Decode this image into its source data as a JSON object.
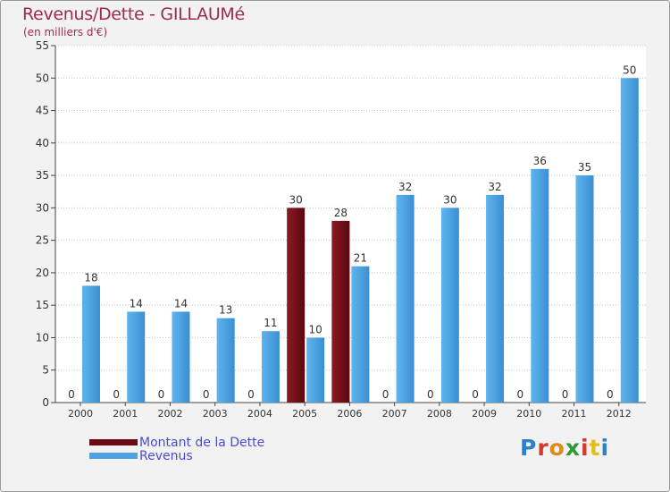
{
  "header": {
    "title": "Revenus/Dette - GILLAUMé",
    "subtitle": "(en milliers d'€)"
  },
  "colors": {
    "dette": "#6b0a12",
    "revenus": "#4ea3e0",
    "axis": "#444444",
    "grid": "#c8c8c8",
    "title": "#9c2a53",
    "legend_text": "#4a4ad8"
  },
  "legend": {
    "dette_label": "Montant de la Dette",
    "revenus_label": "Revenus"
  },
  "logo": {
    "text": "Proxiti",
    "letter_colors": [
      "#2f7fd0",
      "#d43a2a",
      "#e08a1a",
      "#2f9a3a",
      "#d43a2a",
      "#e0c01a",
      "#2f7fd0"
    ]
  },
  "chart_data": {
    "type": "bar",
    "title": "Revenus/Dette - GILLAUMé",
    "subtitle": "(en milliers d'€)",
    "xlabel": "",
    "ylabel": "",
    "ylim": [
      0,
      55
    ],
    "yticks": [
      0,
      5,
      10,
      15,
      20,
      25,
      30,
      35,
      40,
      45,
      50,
      55
    ],
    "grid": true,
    "legend_position": "bottom-left",
    "categories": [
      "2000",
      "2001",
      "2002",
      "2003",
      "2004",
      "2005",
      "2006",
      "2007",
      "2008",
      "2009",
      "2010",
      "2011",
      "2012"
    ],
    "series": [
      {
        "name": "Montant de la Dette",
        "values": [
          0,
          0,
          0,
          0,
          0,
          30,
          28,
          0,
          0,
          0,
          0,
          0,
          0
        ]
      },
      {
        "name": "Revenus",
        "values": [
          18,
          14,
          14,
          13,
          11,
          10,
          21,
          32,
          30,
          32,
          36,
          35,
          50
        ]
      }
    ]
  }
}
